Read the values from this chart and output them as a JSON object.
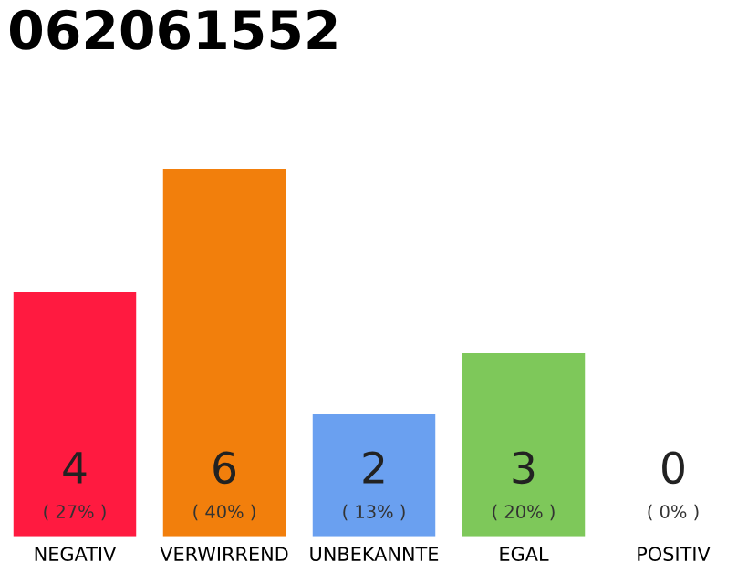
{
  "chart_data": {
    "type": "bar",
    "title": "062061552",
    "categories": [
      "NEGATIV",
      "VERWIRREND",
      "UNBEKANNTE",
      "EGAL",
      "POSITIV"
    ],
    "values": [
      4,
      6,
      2,
      3,
      0
    ],
    "colors": [
      "#ff1a40",
      "#f27f0c",
      "#6aa0f0",
      "#7ec85a",
      "#cccccc"
    ],
    "data_labels": true,
    "annotations": [
      "( 27% )",
      "( 40% )",
      "( 13% )",
      "( 20% )",
      "( 0% )"
    ],
    "tick_labels": "x"
  }
}
